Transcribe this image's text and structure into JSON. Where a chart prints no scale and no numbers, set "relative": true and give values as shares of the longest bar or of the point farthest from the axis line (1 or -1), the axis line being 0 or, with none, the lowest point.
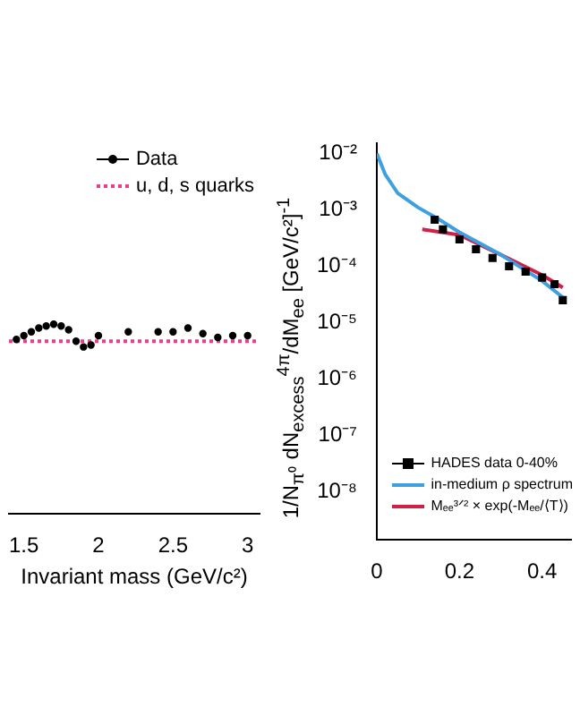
{
  "chart_data": [
    {
      "type": "scatter",
      "relative": true,
      "xlabel": "Invariant mass (GeV/c²)",
      "xlim": [
        1.4,
        3.08
      ],
      "xticks": [
        1.5,
        2,
        2.5,
        3
      ],
      "legend": "top right",
      "series": [
        {
          "name": "Data",
          "color": "#000000",
          "marker": "circle",
          "x": [
            1.45,
            1.5,
            1.55,
            1.6,
            1.65,
            1.7,
            1.75,
            1.8,
            1.85,
            1.9,
            1.95,
            2.0,
            2.2,
            2.4,
            2.5,
            2.6,
            2.7,
            2.8,
            2.9,
            3.0
          ],
          "values": [
            0.92,
            0.94,
            0.96,
            0.98,
            0.99,
            1,
            0.99,
            0.97,
            0.91,
            0.88,
            0.89,
            0.94,
            0.96,
            0.96,
            0.96,
            0.98,
            0.95,
            0.93,
            0.94,
            0.94
          ]
        },
        {
          "name": "u, d, s quarks",
          "type": "line",
          "color": "#e83e8c",
          "line_style": "dotted",
          "marker": "none",
          "x": [
            1.4,
            3.08
          ],
          "values": [
            0.91,
            0.91
          ]
        }
      ]
    },
    {
      "type": "scatter",
      "ylabel": "1/N$_{π⁰}$ dN$_{excess}$$^{4π}$/dM$_{ee}$ [GeV/c²]$^{-1}$",
      "xlim": [
        0,
        0.47
      ],
      "xticks": [
        0,
        0.2,
        0.4
      ],
      "ylim": [
        1.4e-09,
        0.015
      ],
      "log": "y",
      "legend": "bottom right",
      "yticks": [
        {
          "value": 1e-08,
          "label": "10⁻⁸"
        },
        {
          "value": 1e-07,
          "label": "10⁻⁷"
        },
        {
          "value": 1e-06,
          "label": "10⁻⁶"
        },
        {
          "value": 1e-05,
          "label": "10⁻⁵"
        },
        {
          "value": 0.0001,
          "label": "10⁻⁴"
        },
        {
          "value": 0.001,
          "label": "10⁻³"
        },
        {
          "value": 0.01,
          "label": "10⁻²"
        }
      ],
      "series": [
        {
          "name": "HADES data 0-40%",
          "color": "#000000",
          "marker": "square",
          "x": [
            0.14,
            0.16,
            0.2,
            0.24,
            0.28,
            0.32,
            0.36,
            0.4,
            0.43,
            0.45
          ],
          "values": [
            0.00067,
            0.00045,
            0.0003,
            0.0002,
            0.00014,
            0.0001,
            8e-05,
            6.3e-05,
            4.8e-05,
            2.5e-05
          ]
        },
        {
          "name": "in-medium ρ spectrum",
          "type": "line",
          "color": "#3fa0e0",
          "marker": "none",
          "x": [
            0,
            0.02,
            0.05,
            0.1,
            0.15,
            0.2,
            0.3,
            0.4,
            0.45
          ],
          "values": [
            0.01,
            0.0043,
            0.002,
            0.0011,
            0.00068,
            0.0004,
            0.00016,
            5.5e-05,
            2.8e-05
          ]
        },
        {
          "name": "Mₑₑ³ᐟ² × exp(-Mₑₑ/⟨T⟩)",
          "type": "line",
          "color": "#d0204a",
          "marker": "none",
          "x": [
            0.11,
            0.2,
            0.3,
            0.4,
            0.45
          ],
          "values": [
            0.00045,
            0.00036,
            0.00016,
            7e-05,
            4.2e-05
          ]
        }
      ]
    }
  ]
}
